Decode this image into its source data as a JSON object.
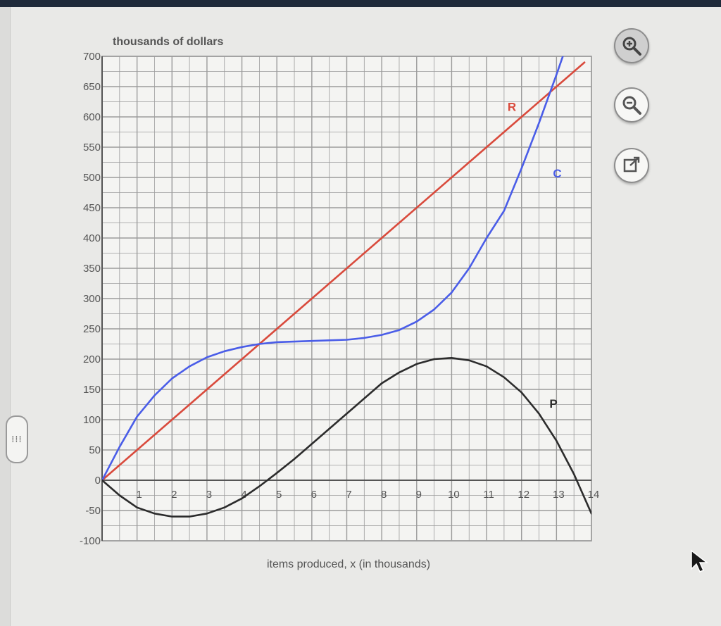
{
  "chart_data": {
    "type": "line",
    "ylabel": "thousands of dollars",
    "xlabel": "items produced, x (in thousands)",
    "xlim": [
      0,
      14
    ],
    "ylim": [
      -100,
      700
    ],
    "x_ticks": [
      "1",
      "2",
      "3",
      "4",
      "5",
      "6",
      "7",
      "8",
      "9",
      "10",
      "11",
      "12",
      "13",
      "14"
    ],
    "y_ticks": [
      "700",
      "650",
      "600",
      "550",
      "500",
      "450",
      "400",
      "350",
      "300",
      "250",
      "200",
      "150",
      "100",
      "50",
      "0",
      "-50",
      "-100"
    ],
    "grid": true,
    "series": [
      {
        "name": "R",
        "color": "#d94a3c",
        "x": [
          0,
          2,
          4,
          6,
          8,
          10,
          12,
          13.8
        ],
        "y": [
          0,
          100,
          200,
          300,
          400,
          500,
          600,
          690
        ]
      },
      {
        "name": "C",
        "color": "#4a5de8",
        "x": [
          0,
          0.5,
          1,
          1.5,
          2,
          2.5,
          3,
          3.5,
          4,
          4.5,
          5,
          5.5,
          6,
          6.5,
          7,
          7.5,
          8,
          8.5,
          9,
          9.5,
          10,
          10.5,
          11,
          11.5,
          12,
          12.5,
          13,
          13.3,
          13.6
        ],
        "y": [
          0,
          55,
          105,
          140,
          168,
          188,
          203,
          213,
          220,
          225,
          228,
          229,
          230,
          231,
          232,
          235,
          240,
          248,
          262,
          282,
          310,
          350,
          400,
          445,
          515,
          590,
          670,
          720,
          770
        ]
      },
      {
        "name": "P",
        "color": "#2c2c2c",
        "x": [
          0,
          0.5,
          1,
          1.5,
          2,
          2.5,
          3,
          3.5,
          4,
          4.5,
          5,
          5.5,
          6,
          6.5,
          7,
          7.5,
          8,
          8.5,
          9,
          9.5,
          10,
          10.5,
          11,
          11.5,
          12,
          12.5,
          13,
          13.5,
          14
        ],
        "y": [
          0,
          -25,
          -45,
          -55,
          -60,
          -60,
          -55,
          -45,
          -30,
          -10,
          12,
          35,
          60,
          85,
          110,
          135,
          160,
          178,
          192,
          200,
          202,
          198,
          188,
          170,
          145,
          110,
          65,
          10,
          -55
        ]
      }
    ],
    "curve_labels": [
      {
        "text": "R",
        "x": 11.6,
        "y": 610,
        "color": "#d94a3c"
      },
      {
        "text": "C",
        "x": 12.9,
        "y": 500,
        "color": "#4a5de8"
      },
      {
        "text": "P",
        "x": 12.8,
        "y": 120,
        "color": "#2c2c2c"
      }
    ]
  },
  "tools": {
    "zoom_in_icon": "magnifier-plus-icon",
    "zoom_out_icon": "magnifier-minus-icon",
    "popout_icon": "external-link-icon"
  },
  "side_panel": {
    "handle_text": "⁞⁞⁞"
  }
}
